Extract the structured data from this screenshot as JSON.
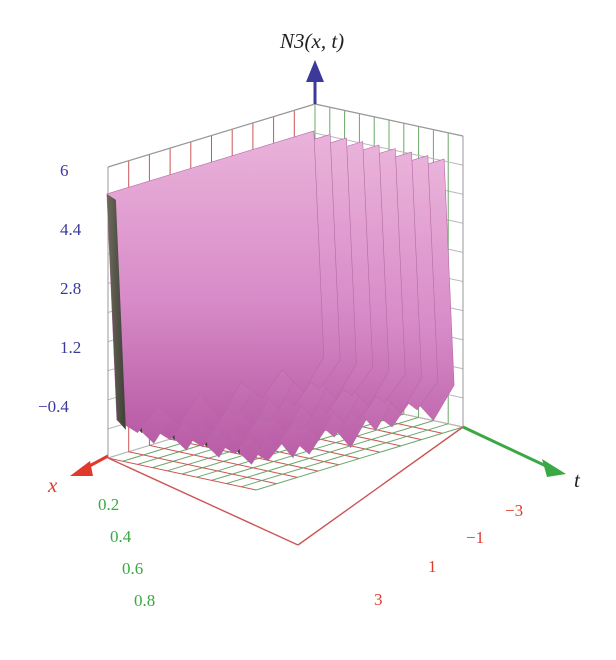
{
  "chart_data": {
    "type": "surface",
    "title": "",
    "z_label": "N3(x, t)",
    "x_label": "x",
    "t_label": "t",
    "x_ticks": [
      "0.2",
      "0.4",
      "0.6",
      "0.8"
    ],
    "t_ticks": [
      "−3",
      "−1",
      "1",
      "3"
    ],
    "z_ticks": [
      "6",
      "4.4",
      "2.8",
      "1.2",
      "−0.4"
    ],
    "x_range": [
      0,
      1
    ],
    "t_range": [
      -4,
      4
    ],
    "z_range": [
      -0.4,
      6
    ],
    "num_sheets": 9,
    "grid": true,
    "colors": {
      "surface_light": "#e7a9d8",
      "surface_mid": "#c46cb1",
      "surface_dark": "#5c5c4f",
      "x_axis": "#e03a2b",
      "t_axis": "#3aa845",
      "z_axis": "#3b3a9a",
      "grid_red": "#cc5555",
      "grid_green": "#6aa86a",
      "grid_gray": "#b9b9b9"
    }
  }
}
